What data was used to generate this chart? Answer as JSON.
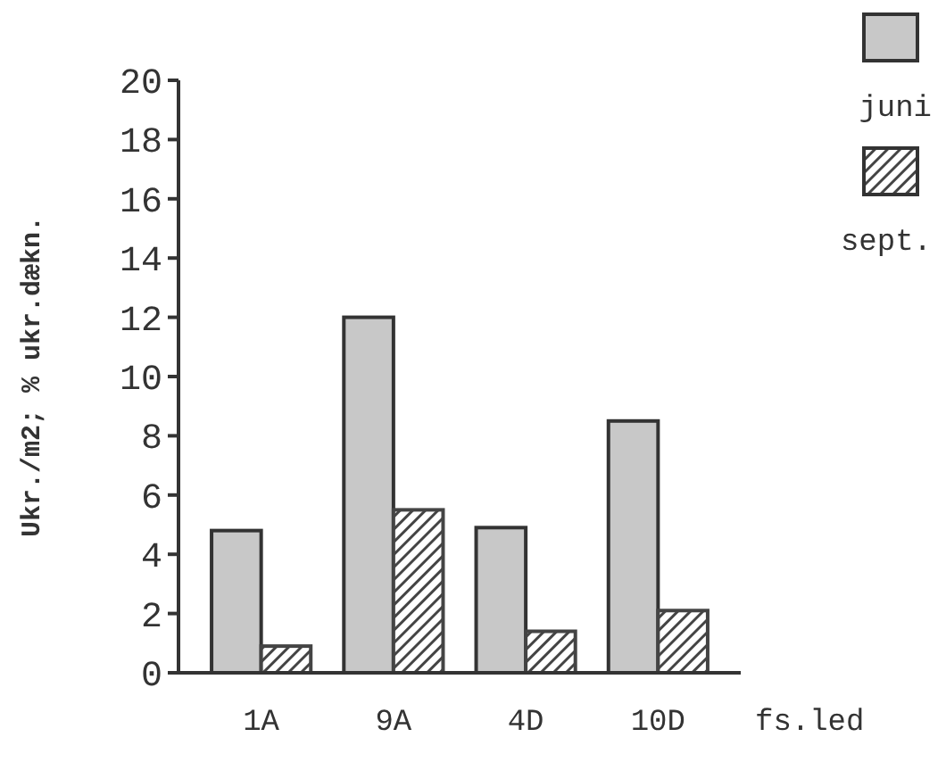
{
  "chart_data": {
    "type": "bar",
    "categories": [
      "1A",
      "9A",
      "4D",
      "10D"
    ],
    "xlabel": "fs.led",
    "ylabel": "Ukr./m2; % ukr.dækn.",
    "series": [
      {
        "name": "juni",
        "color": "#c8c8c8",
        "values": [
          4.8,
          12.0,
          4.9,
          8.5
        ]
      },
      {
        "name": "sept.",
        "color": "#444444",
        "values": [
          0.9,
          5.5,
          1.4,
          2.1
        ]
      }
    ],
    "ylim": [
      0,
      20
    ],
    "yticks": [
      0,
      2,
      4,
      6,
      8,
      10,
      12,
      14,
      16,
      18,
      20
    ],
    "grid": false,
    "legend": "top right"
  }
}
